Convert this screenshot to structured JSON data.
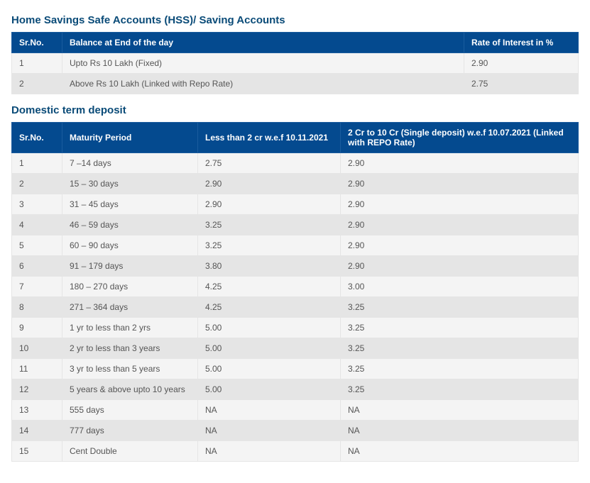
{
  "savings": {
    "heading": "Home Savings Safe Accounts (HSS)/ Saving Accounts",
    "columns": [
      "Sr.No.",
      "Balance at End of the day",
      "Rate of Interest in %"
    ],
    "rows": [
      [
        "1",
        "Upto Rs 10 Lakh (Fixed)",
        "2.90"
      ],
      [
        "2",
        "Above Rs 10 Lakh (Linked with Repo Rate)",
        "2.75"
      ]
    ]
  },
  "term": {
    "heading": "Domestic term deposit",
    "columns": [
      "Sr.No.",
      "Maturity Period",
      "Less than 2 cr w.e.f 10.11.2021",
      "2 Cr to 10 Cr (Single deposit) w.e.f 10.07.2021 (Linked with REPO Rate)"
    ],
    "rows": [
      [
        "1",
        "7 –14 days",
        "2.75",
        "2.90"
      ],
      [
        "2",
        "15 – 30 days",
        "2.90",
        "2.90"
      ],
      [
        "3",
        "31 – 45 days",
        "2.90",
        "2.90"
      ],
      [
        "4",
        "46 – 59 days",
        "3.25",
        "2.90"
      ],
      [
        "5",
        "60 – 90 days",
        "3.25",
        "2.90"
      ],
      [
        "6",
        "91 – 179 days",
        "3.80",
        "2.90"
      ],
      [
        "7",
        "180 – 270 days",
        "4.25",
        "3.00"
      ],
      [
        "8",
        "271 – 364 days",
        "4.25",
        "3.25"
      ],
      [
        "9",
        "1 yr to less than 2 yrs",
        "5.00",
        "3.25"
      ],
      [
        "10",
        "2 yr to less than 3 years",
        "5.00",
        "3.25"
      ],
      [
        "11",
        "3 yr to less than 5 years",
        "5.00",
        "3.25"
      ],
      [
        "12",
        "5 years & above upto 10 years",
        "5.00",
        "3.25"
      ],
      [
        "13",
        "555 days",
        "NA",
        "NA"
      ],
      [
        "14",
        "777 days",
        "NA",
        "NA"
      ],
      [
        "15",
        "Cent Double",
        "NA",
        "NA"
      ]
    ]
  }
}
